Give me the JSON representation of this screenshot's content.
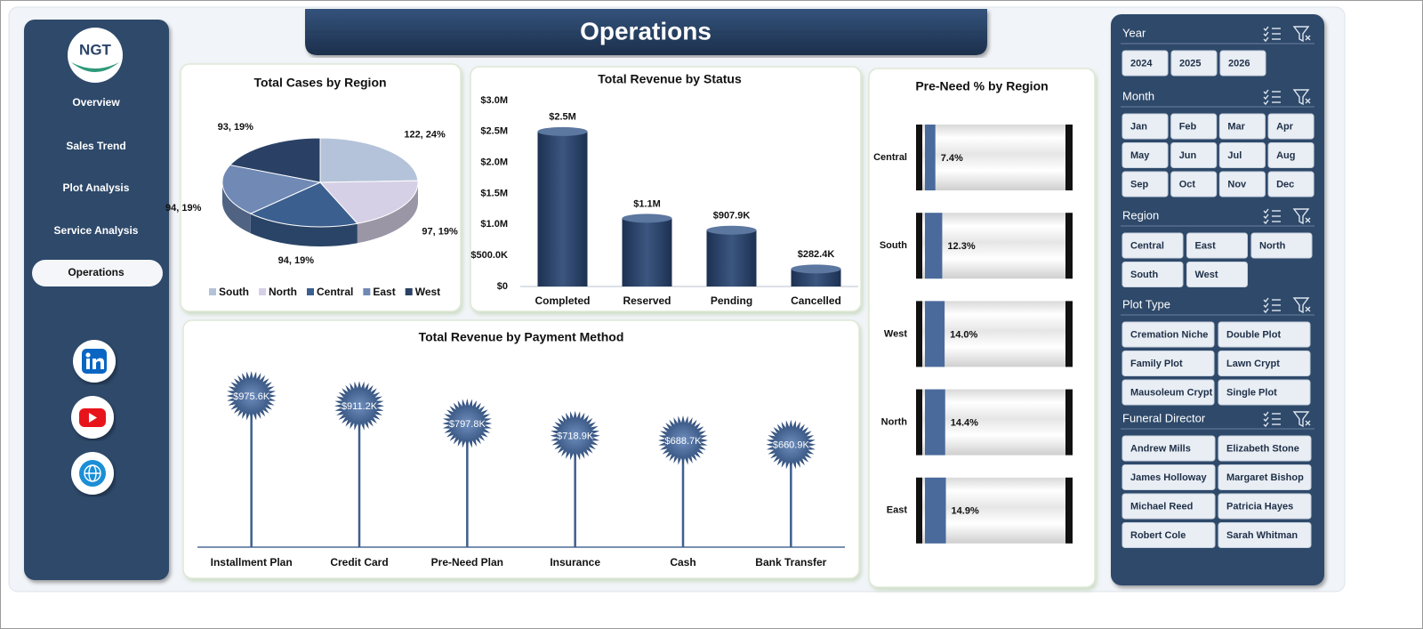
{
  "header": {
    "title": "Operations"
  },
  "logo": {
    "text": "NGT"
  },
  "nav": [
    {
      "label": "Overview",
      "active": false
    },
    {
      "label": "Sales Trend",
      "active": false
    },
    {
      "label": "Plot Analysis",
      "active": false
    },
    {
      "label": "Service Analysis",
      "active": false
    },
    {
      "label": "Operations",
      "active": true
    }
  ],
  "chart_data": [
    {
      "type": "pie",
      "title": "Total Cases by Region",
      "categories": [
        "South",
        "North",
        "Central",
        "East",
        "West"
      ],
      "values": [
        122,
        97,
        94,
        94,
        93
      ],
      "value_labels": [
        "122, 24%",
        "97, 19%",
        "94, 19%",
        "94, 19%",
        "93, 19%"
      ],
      "colors": [
        "#b4c3d9",
        "#d6d0e6",
        "#3b5f8f",
        "#7089b5",
        "#2a4165"
      ],
      "legend": "bottom"
    },
    {
      "type": "bar",
      "title": "Total Revenue by Status",
      "categories": [
        "Completed",
        "Reserved",
        "Pending",
        "Cancelled"
      ],
      "values": [
        2500000,
        1100000,
        907900,
        282400
      ],
      "value_labels": [
        "$2.5M",
        "$1.1M",
        "$907.9K",
        "$282.4K"
      ],
      "color": "#2c4468",
      "ylim": [
        0,
        3000000
      ],
      "yticks": [
        {
          "value": 0,
          "label": "$0"
        },
        {
          "value": 500000,
          "label": "$500.0K"
        },
        {
          "value": 1000000,
          "label": "$1.0M"
        },
        {
          "value": 1500000,
          "label": "$1.5M"
        },
        {
          "value": 2000000,
          "label": "$2.0M"
        },
        {
          "value": 2500000,
          "label": "$2.5M"
        },
        {
          "value": 3000000,
          "label": "$3.0M"
        }
      ]
    },
    {
      "type": "lollipop",
      "title": "Total Revenue by Payment Method",
      "categories": [
        "Installment Plan",
        "Credit Card",
        "Pre-Need Plan",
        "Insurance",
        "Cash",
        "Bank Transfer"
      ],
      "values": [
        975600,
        911200,
        797800,
        718900,
        688700,
        660900
      ],
      "value_labels": [
        "$975.6K",
        "$911.2K",
        "$797.8K",
        "$718.9K",
        "$688.7K",
        "$660.9K"
      ],
      "color": "#3d5f8e"
    },
    {
      "type": "progress",
      "title": "Pre-Need % by Region",
      "categories": [
        "Central",
        "South",
        "West",
        "North",
        "East"
      ],
      "values": [
        7.4,
        12.3,
        14.0,
        14.4,
        14.9
      ],
      "value_labels": [
        "7.4%",
        "12.3%",
        "14.0%",
        "14.4%",
        "14.9%"
      ],
      "color": "#4a6a9c",
      "xlim": [
        0,
        100
      ]
    }
  ],
  "slicers": [
    {
      "title": "Year",
      "items": [
        "2024",
        "2025",
        "2026"
      ]
    },
    {
      "title": "Month",
      "items": [
        "Jan",
        "Feb",
        "Mar",
        "Apr",
        "May",
        "Jun",
        "Jul",
        "Aug",
        "Sep",
        "Oct",
        "Nov",
        "Dec"
      ]
    },
    {
      "title": "Region",
      "items": [
        "Central",
        "East",
        "North",
        "South",
        "West"
      ]
    },
    {
      "title": "Plot Type",
      "items": [
        "Cremation Niche",
        "Double Plot",
        "Family Plot",
        "Lawn Crypt",
        "Mausoleum Crypt",
        "Single Plot"
      ]
    },
    {
      "title": "Funeral Director",
      "items": [
        "Andrew Mills",
        "Elizabeth Stone",
        "James Holloway",
        "Margaret Bishop",
        "Michael Reed",
        "Patricia Hayes",
        "Robert Cole",
        "Sarah Whitman"
      ]
    }
  ]
}
